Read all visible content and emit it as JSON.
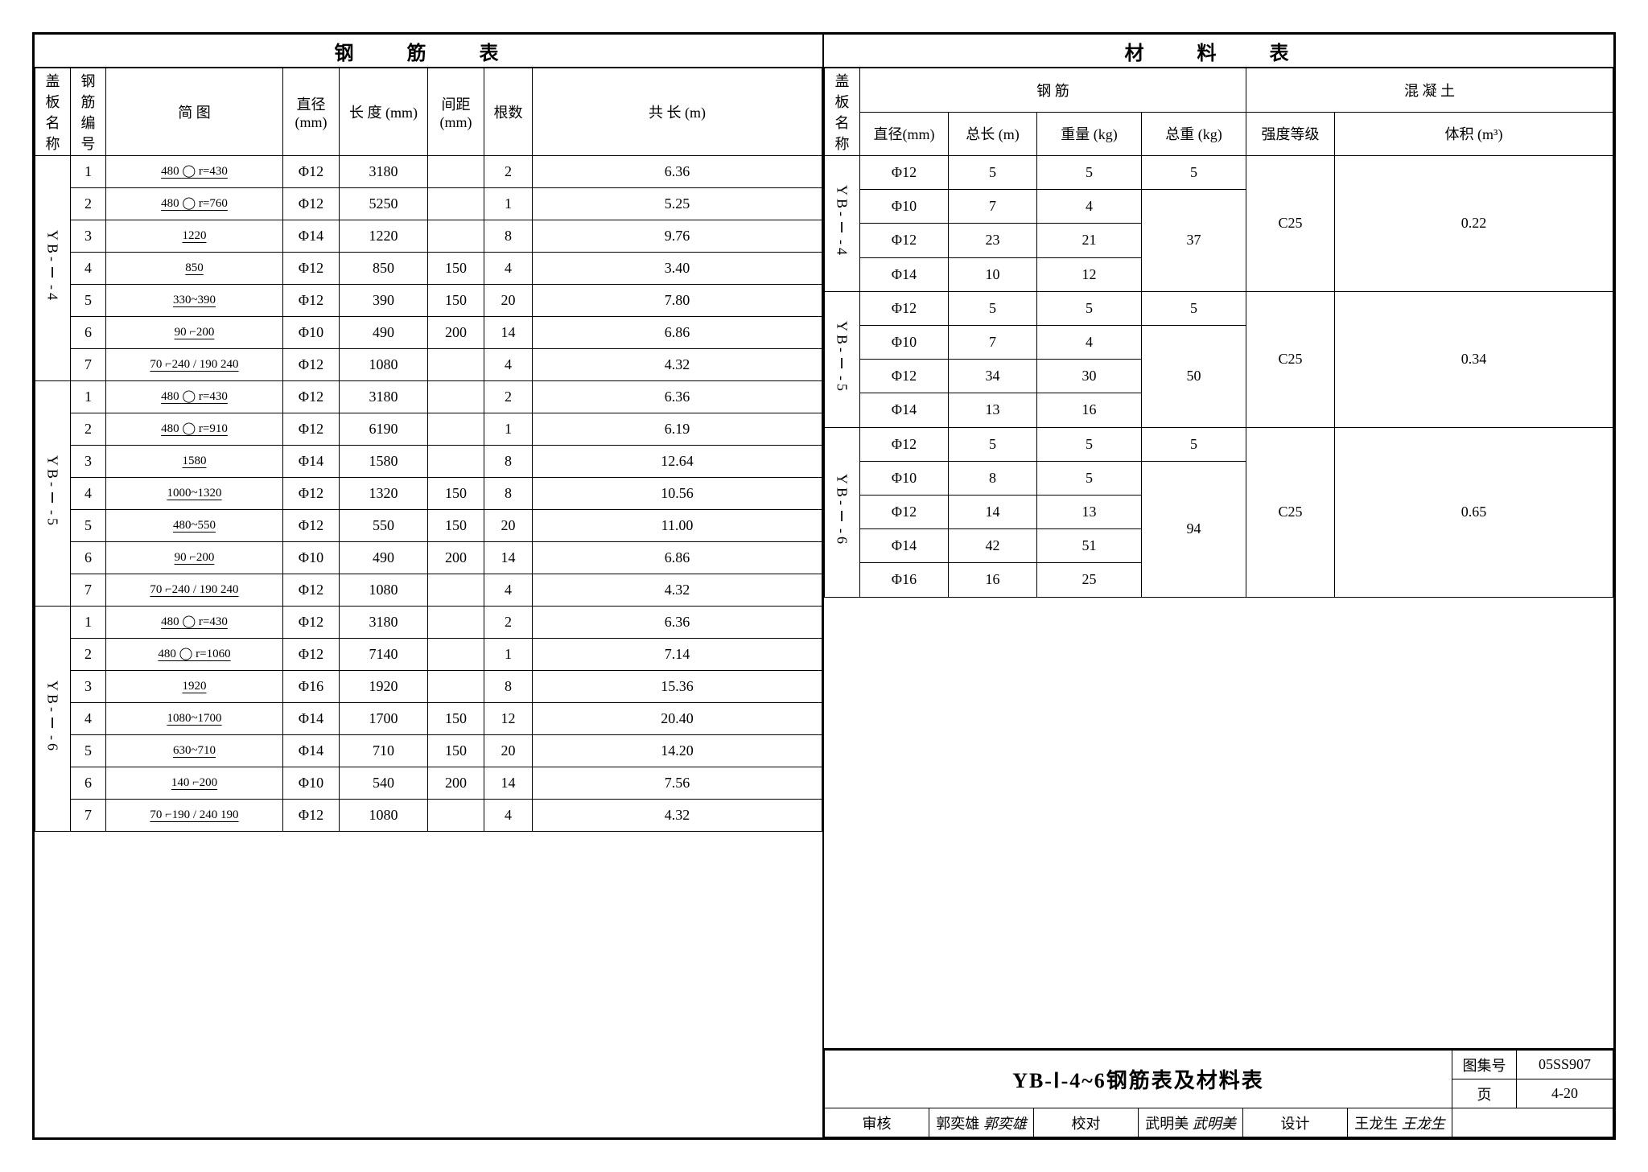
{
  "colors": {
    "stroke": "#000000",
    "bg": "#ffffff"
  },
  "rebar_table": {
    "title": "钢 筋 表",
    "headers": {
      "plate_name": "盖板\n名称",
      "rebar_no": "钢筋\n编号",
      "diagram": "简   图",
      "diameter": "直径\n(mm)",
      "length": "长 度\n(mm)",
      "spacing": "间距\n(mm)",
      "count": "根数",
      "total_len": "共 长\n(m)"
    },
    "groups": [
      {
        "name": "YB-Ⅰ-4",
        "rows": [
          {
            "no": "1",
            "diagram": "480 ◯ r=430",
            "dia": "Φ12",
            "len": "3180",
            "sp": "",
            "cnt": "2",
            "tot": "6.36"
          },
          {
            "no": "2",
            "diagram": "480 ◯ r=760",
            "dia": "Φ12",
            "len": "5250",
            "sp": "",
            "cnt": "1",
            "tot": "5.25"
          },
          {
            "no": "3",
            "diagram": "1220",
            "dia": "Φ14",
            "len": "1220",
            "sp": "",
            "cnt": "8",
            "tot": "9.76"
          },
          {
            "no": "4",
            "diagram": "850",
            "dia": "Φ12",
            "len": "850",
            "sp": "150",
            "cnt": "4",
            "tot": "3.40"
          },
          {
            "no": "5",
            "diagram": "330~390",
            "dia": "Φ12",
            "len": "390",
            "sp": "150",
            "cnt": "20",
            "tot": "7.80"
          },
          {
            "no": "6",
            "diagram": "90 ⌐200",
            "dia": "Φ10",
            "len": "490",
            "sp": "200",
            "cnt": "14",
            "tot": "6.86"
          },
          {
            "no": "7",
            "diagram": "70 ⌐240 / 190 240",
            "dia": "Φ12",
            "len": "1080",
            "sp": "",
            "cnt": "4",
            "tot": "4.32"
          }
        ]
      },
      {
        "name": "YB-Ⅰ-5",
        "rows": [
          {
            "no": "1",
            "diagram": "480 ◯ r=430",
            "dia": "Φ12",
            "len": "3180",
            "sp": "",
            "cnt": "2",
            "tot": "6.36"
          },
          {
            "no": "2",
            "diagram": "480 ◯ r=910",
            "dia": "Φ12",
            "len": "6190",
            "sp": "",
            "cnt": "1",
            "tot": "6.19"
          },
          {
            "no": "3",
            "diagram": "1580",
            "dia": "Φ14",
            "len": "1580",
            "sp": "",
            "cnt": "8",
            "tot": "12.64"
          },
          {
            "no": "4",
            "diagram": "1000~1320",
            "dia": "Φ12",
            "len": "1320",
            "sp": "150",
            "cnt": "8",
            "tot": "10.56"
          },
          {
            "no": "5",
            "diagram": "480~550",
            "dia": "Φ12",
            "len": "550",
            "sp": "150",
            "cnt": "20",
            "tot": "11.00"
          },
          {
            "no": "6",
            "diagram": "90 ⌐200",
            "dia": "Φ10",
            "len": "490",
            "sp": "200",
            "cnt": "14",
            "tot": "6.86"
          },
          {
            "no": "7",
            "diagram": "70 ⌐240 / 190 240",
            "dia": "Φ12",
            "len": "1080",
            "sp": "",
            "cnt": "4",
            "tot": "4.32"
          }
        ]
      },
      {
        "name": "YB-Ⅰ-6",
        "rows": [
          {
            "no": "1",
            "diagram": "480 ◯ r=430",
            "dia": "Φ12",
            "len": "3180",
            "sp": "",
            "cnt": "2",
            "tot": "6.36"
          },
          {
            "no": "2",
            "diagram": "480 ◯ r=1060",
            "dia": "Φ12",
            "len": "7140",
            "sp": "",
            "cnt": "1",
            "tot": "7.14"
          },
          {
            "no": "3",
            "diagram": "1920",
            "dia": "Φ16",
            "len": "1920",
            "sp": "",
            "cnt": "8",
            "tot": "15.36"
          },
          {
            "no": "4",
            "diagram": "1080~1700",
            "dia": "Φ14",
            "len": "1700",
            "sp": "150",
            "cnt": "12",
            "tot": "20.40"
          },
          {
            "no": "5",
            "diagram": "630~710",
            "dia": "Φ14",
            "len": "710",
            "sp": "150",
            "cnt": "20",
            "tot": "14.20"
          },
          {
            "no": "6",
            "diagram": "140 ⌐200",
            "dia": "Φ10",
            "len": "540",
            "sp": "200",
            "cnt": "14",
            "tot": "7.56"
          },
          {
            "no": "7",
            "diagram": "70 ⌐190 / 240 190",
            "dia": "Φ12",
            "len": "1080",
            "sp": "",
            "cnt": "4",
            "tot": "4.32"
          }
        ]
      }
    ]
  },
  "material_table": {
    "title": "材  料  表",
    "headers": {
      "plate_name": "盖板\n名称",
      "rebar_group": "钢   筋",
      "diameter": "直径(mm)",
      "total_len": "总长 (m)",
      "weight": "重量 (kg)",
      "total_weight": "总重 (kg)",
      "concrete_group": "混 凝 土",
      "grade": "强度等级",
      "volume": "体积 (m³)"
    },
    "groups": [
      {
        "name": "YB-Ⅰ-4",
        "rows": [
          {
            "dia": "Φ12",
            "len": "5",
            "wt": "5",
            "twt": "5",
            "grade": "C25",
            "vol": "0.22",
            "twt_span": 1,
            "grade_span": 4,
            "vol_span": 4
          },
          {
            "dia": "Φ10",
            "len": "7",
            "wt": "4",
            "twt": "37",
            "twt_span": 3
          },
          {
            "dia": "Φ12",
            "len": "23",
            "wt": "21"
          },
          {
            "dia": "Φ14",
            "len": "10",
            "wt": "12"
          }
        ]
      },
      {
        "name": "YB-Ⅰ-5",
        "rows": [
          {
            "dia": "Φ12",
            "len": "5",
            "wt": "5",
            "twt": "5",
            "twt_span": 1,
            "grade": "C25",
            "vol": "0.34",
            "grade_span": 4,
            "vol_span": 4
          },
          {
            "dia": "Φ10",
            "len": "7",
            "wt": "4",
            "twt": "50",
            "twt_span": 3
          },
          {
            "dia": "Φ12",
            "len": "34",
            "wt": "30"
          },
          {
            "dia": "Φ14",
            "len": "13",
            "wt": "16"
          }
        ]
      },
      {
        "name": "YB-Ⅰ-6",
        "rows": [
          {
            "dia": "Φ12",
            "len": "5",
            "wt": "5",
            "twt": "5",
            "twt_span": 1,
            "grade": "C25",
            "vol": "0.65",
            "grade_span": 5,
            "vol_span": 5
          },
          {
            "dia": "Φ10",
            "len": "8",
            "wt": "5",
            "twt": "94",
            "twt_span": 4
          },
          {
            "dia": "Φ12",
            "len": "14",
            "wt": "13"
          },
          {
            "dia": "Φ14",
            "len": "42",
            "wt": "51"
          },
          {
            "dia": "Φ16",
            "len": "16",
            "wt": "25"
          }
        ]
      }
    ]
  },
  "footer": {
    "title": "YB-Ⅰ-4~6钢筋表及材料表",
    "book_label": "图集号",
    "book_no": "05SS907",
    "page_label": "页",
    "page_no": "4-20",
    "review_label": "审核",
    "review_name": "郭奕雄",
    "check_label": "校对",
    "check_name": "武明美",
    "design_label": "设计",
    "design_name": "王龙生"
  }
}
